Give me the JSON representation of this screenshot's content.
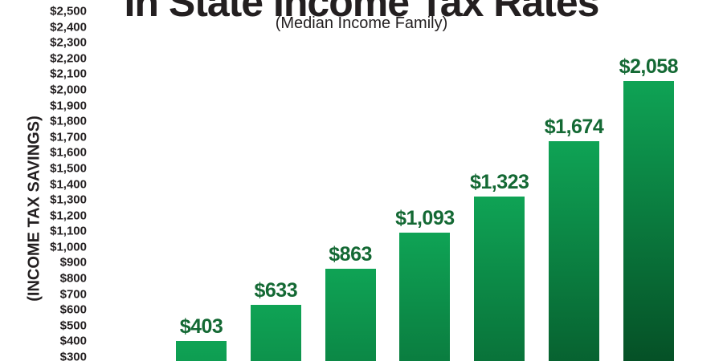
{
  "chart_data": {
    "type": "bar",
    "title": "In State Income Tax Rates",
    "subtitle": "(Median Income Family)",
    "y_axis_title": "(INCOME TAX SAVINGS)",
    "values": [
      403,
      633,
      863,
      1093,
      1323,
      1674,
      2058
    ],
    "value_labels": [
      "$403",
      "$633",
      "$863",
      "$1,093",
      "$1,323",
      "$1,674",
      "$2,058"
    ],
    "y_ticks": [
      "$2,500",
      "$2,400",
      "$2,300",
      "$2,200",
      "$2,100",
      "$2,000",
      "$1,900",
      "$1,800",
      "$1,700",
      "$1,600",
      "$1,500",
      "$1,400",
      "$1,300",
      "$1,200",
      "$1,100",
      "$1,000",
      "$900",
      "$800",
      "$700",
      "$600",
      "$500",
      "$400",
      "$300"
    ],
    "y_axis_visible_range": [
      300,
      2500
    ],
    "y_tick_step": 100,
    "grid": "off",
    "legend": "none",
    "note": "x-axis category labels cut off at bottom edge of screenshot",
    "colors": {
      "bar_gradient_top": "#0fa355",
      "bar_gradient_bottom": "#03401d",
      "value_label": "#146934",
      "tick_label": "#231f20",
      "title": "#231f20"
    }
  }
}
